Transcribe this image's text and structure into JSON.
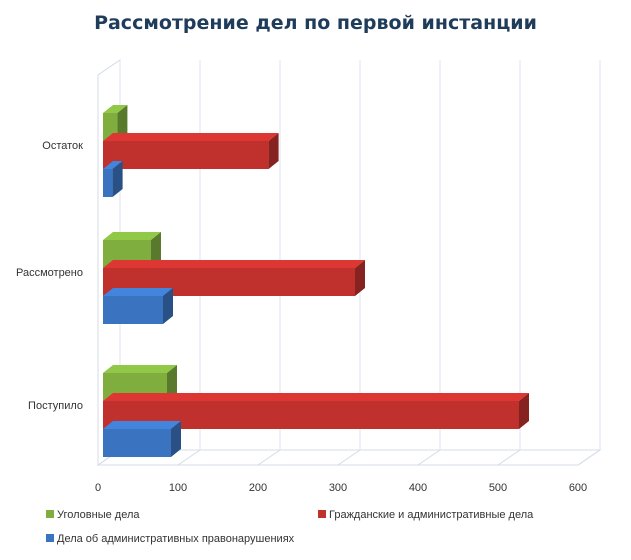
{
  "chart_data": {
    "type": "bar",
    "orientation": "horizontal",
    "title": "Рассмотрение дел по первой инстанции",
    "categories": [
      "Поступило",
      "Рассмотрено",
      "Остаток"
    ],
    "series": [
      {
        "name": "Уголовные дела",
        "color": "#7fae3f",
        "values": [
          80,
          60,
          18
        ]
      },
      {
        "name": "Гражданские и административные дела",
        "color": "#c0302c",
        "values": [
          520,
          315,
          207
        ]
      },
      {
        "name": "Дела об административных правонарушениях",
        "color": "#3a73c0",
        "values": [
          85,
          75,
          12
        ]
      }
    ],
    "xlim": [
      0,
      600
    ],
    "xticks": [
      "0",
      "100",
      "200",
      "300",
      "400",
      "500",
      "600"
    ],
    "grid": true,
    "legend": "bottom"
  }
}
